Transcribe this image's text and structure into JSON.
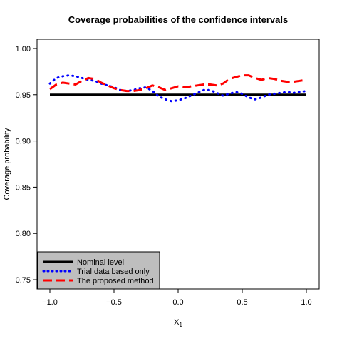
{
  "chart_data": {
    "type": "line",
    "title": "Coverage probabilities of the confidence intervals",
    "xlabel": "X",
    "xlabel_subscript": "1",
    "ylabel": "Coverage probability",
    "xlim": [
      -1.1,
      1.1
    ],
    "ylim": [
      0.74,
      1.01
    ],
    "x_ticks": [
      -1.0,
      -0.5,
      0.0,
      0.5,
      1.0
    ],
    "x_tick_labels": [
      "−1.0",
      "−0.5",
      "0.0",
      "0.5",
      "1.0"
    ],
    "y_ticks": [
      0.75,
      0.8,
      0.85,
      0.9,
      0.95,
      1.0
    ],
    "y_tick_labels": [
      "0.75",
      "0.80",
      "0.85",
      "0.90",
      "0.95",
      "1.00"
    ],
    "grid": false,
    "legend_position": "bottom-left",
    "series": [
      {
        "name": "Nominal level",
        "color": "#000000",
        "style": "solid",
        "x": [
          -1.0,
          1.0
        ],
        "y": [
          0.95,
          0.95
        ]
      },
      {
        "name": "Trial data based only",
        "color": "#0000ff",
        "style": "dotted",
        "x": [
          -1.0,
          -0.95,
          -0.9,
          -0.85,
          -0.8,
          -0.75,
          -0.7,
          -0.65,
          -0.6,
          -0.55,
          -0.5,
          -0.45,
          -0.4,
          -0.35,
          -0.3,
          -0.25,
          -0.2,
          -0.15,
          -0.1,
          -0.05,
          0.0,
          0.05,
          0.1,
          0.15,
          0.2,
          0.25,
          0.3,
          0.35,
          0.4,
          0.45,
          0.5,
          0.55,
          0.6,
          0.65,
          0.7,
          0.75,
          0.8,
          0.85,
          0.9,
          0.95,
          1.0
        ],
        "y": [
          0.962,
          0.968,
          0.97,
          0.971,
          0.97,
          0.968,
          0.966,
          0.965,
          0.962,
          0.96,
          0.958,
          0.955,
          0.954,
          0.955,
          0.957,
          0.958,
          0.954,
          0.948,
          0.945,
          0.943,
          0.944,
          0.946,
          0.949,
          0.952,
          0.955,
          0.955,
          0.952,
          0.949,
          0.951,
          0.953,
          0.951,
          0.947,
          0.945,
          0.947,
          0.95,
          0.951,
          0.952,
          0.953,
          0.952,
          0.953,
          0.954
        ]
      },
      {
        "name": "The proposed method",
        "color": "#ff0000",
        "style": "dashed",
        "x": [
          -1.0,
          -0.95,
          -0.9,
          -0.85,
          -0.8,
          -0.75,
          -0.7,
          -0.65,
          -0.6,
          -0.55,
          -0.5,
          -0.45,
          -0.4,
          -0.35,
          -0.3,
          -0.25,
          -0.2,
          -0.15,
          -0.1,
          -0.05,
          0.0,
          0.05,
          0.1,
          0.15,
          0.2,
          0.25,
          0.3,
          0.35,
          0.4,
          0.45,
          0.5,
          0.55,
          0.6,
          0.65,
          0.7,
          0.75,
          0.8,
          0.85,
          0.9,
          0.95,
          1.0
        ],
        "y": [
          0.956,
          0.961,
          0.963,
          0.962,
          0.961,
          0.965,
          0.968,
          0.967,
          0.963,
          0.96,
          0.957,
          0.955,
          0.954,
          0.954,
          0.955,
          0.957,
          0.96,
          0.958,
          0.955,
          0.957,
          0.959,
          0.958,
          0.959,
          0.96,
          0.961,
          0.961,
          0.96,
          0.962,
          0.967,
          0.969,
          0.971,
          0.971,
          0.968,
          0.966,
          0.968,
          0.967,
          0.965,
          0.964,
          0.964,
          0.965,
          0.966
        ]
      }
    ]
  }
}
